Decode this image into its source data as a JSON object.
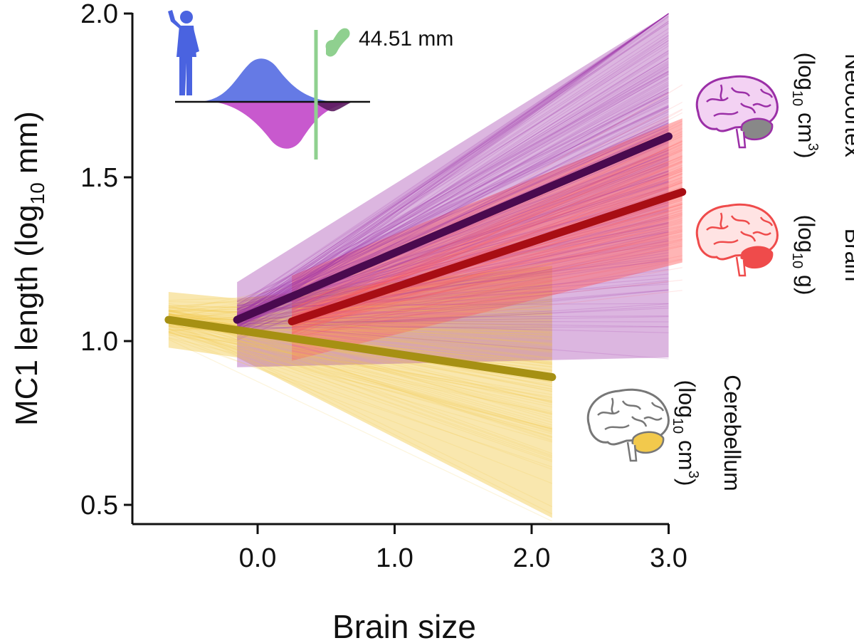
{
  "chart_data": {
    "type": "line",
    "title": "",
    "ylabel": {
      "main": "MC1 length (log",
      "sub": "10",
      "tail": " mm)"
    },
    "xlabel": "Brain size",
    "xlim": [
      -0.95,
      3.0
    ],
    "ylim": [
      0.45,
      2.0
    ],
    "x_ticks": [
      {
        "value": 0.0,
        "label": "0.0"
      },
      {
        "value": 1.0,
        "label": "1.0"
      },
      {
        "value": 2.0,
        "label": "2.0"
      },
      {
        "value": 3.0,
        "label": "3.0"
      }
    ],
    "y_ticks": [
      {
        "value": 0.5,
        "label": "0.5"
      },
      {
        "value": 1.0,
        "label": "1.0"
      },
      {
        "value": 1.5,
        "label": "1.5"
      },
      {
        "value": 2.0,
        "label": "2.0"
      }
    ],
    "series": [
      {
        "name": "Cerebellum",
        "unit": {
          "pre": "(log",
          "sub": "10",
          "mid": " cm",
          "sup": "3",
          "post": ")"
        },
        "color": "#f2c94c",
        "line_color": "#a69013",
        "x": [
          -0.65,
          2.15
        ],
        "y": [
          1.065,
          0.89
        ],
        "band": {
          "x": [
            -0.65,
            -0.15,
            2.15
          ],
          "lower": [
            0.98,
            0.95,
            0.46
          ],
          "upper": [
            1.15,
            1.13,
            1.23
          ]
        }
      },
      {
        "name": "Neocortex",
        "unit": {
          "pre": "(log",
          "sub": "10",
          "mid": " cm",
          "sup": "3",
          "post": ")"
        },
        "color": "#9b2fa7",
        "line_color": "#4a0a4f",
        "x": [
          -0.15,
          3.0
        ],
        "y": [
          1.065,
          1.625
        ],
        "band": {
          "x": [
            -0.15,
            3.0
          ],
          "lower": [
            0.92,
            0.95
          ],
          "upper": [
            1.18,
            2.0
          ]
        }
      },
      {
        "name": "Brain",
        "unit": {
          "pre": "(log",
          "sub": "10",
          "mid": " g",
          "sup": "",
          "post": ")"
        },
        "color": "#ff5a5a",
        "line_color": "#a80e14",
        "x": [
          0.25,
          3.1
        ],
        "y": [
          1.06,
          1.455
        ],
        "band": {
          "x": [
            0.25,
            3.1
          ],
          "lower": [
            0.94,
            1.24
          ],
          "upper": [
            1.2,
            1.68
          ]
        }
      }
    ],
    "inset": {
      "annotation": "44.51 mm",
      "colors": {
        "human": "#4a63e0",
        "modern": "#c247c9",
        "fossil": "#8fd08f"
      }
    }
  }
}
